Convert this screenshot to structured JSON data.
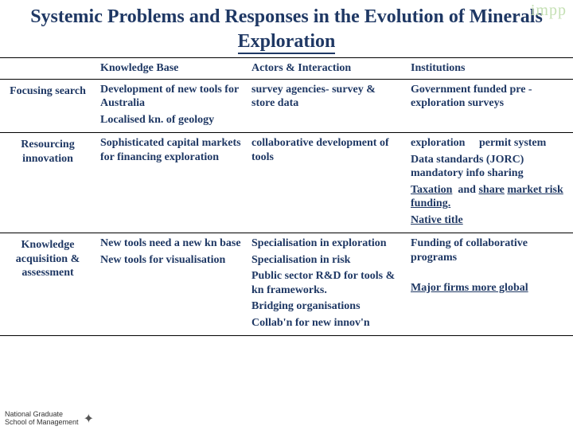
{
  "watermark": "impp",
  "title_html": "Systemic Problems and Responses in the Evolution of Minerals <span class=\"underline\">Exploration</span>",
  "columns": [
    "",
    "Knowledge Base",
    "Actors & Interaction",
    "Institutions"
  ],
  "rows": [
    {
      "header": "Focusing search",
      "cells": [
        "<span class=\"para\">Development of new tools for Australia</span><span class=\"para\">Localised kn. of geology</span>",
        "survey agencies- survey & store data",
        "Government funded pre -exploration surveys"
      ]
    },
    {
      "header": "Resourcing innovation",
      "cells": [
        "Sophisticated capital markets for financing exploration",
        "collaborative development of tools",
        "<span class=\"para\">exploration &nbsp;&nbsp;&nbsp;&nbsp;permit system</span><span class=\"para\">Data standards (JORC) mandatory info sharing</span><span class=\"para\"><span class=\"u\">Taxation</span> &nbsp;and <span class=\"u\">share</span> <span class=\"u\">market risk funding.</span></span><span class=\"para\"><span class=\"u\">Native title</span></span>"
      ]
    },
    {
      "header": "Knowledge acquisition & assessment",
      "cells": [
        "<span class=\"para\">New tools need a new kn base</span><span class=\"para\">New tools for visualisation</span>",
        "<span class=\"para\">Specialisation in exploration</span><span class=\"para\">Specialisation in risk</span><span class=\"para\">Public sector R&D for tools & kn frameworks.</span><span class=\"para\">Bridging organisations</span><span class=\"para\">Collab'n for new innov'n</span>",
        "<span class=\"para\">Funding of collaborative programs</span><br><span class=\"para\"><span class=\"u\">Major firms more global</span></span>"
      ]
    }
  ],
  "footer": {
    "line1": "National Graduate",
    "line2": "School of Management"
  }
}
